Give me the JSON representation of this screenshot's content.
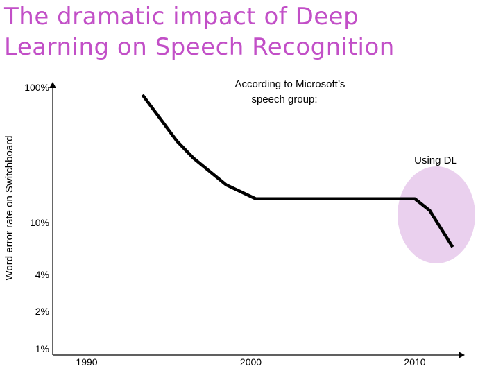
{
  "title_lines": [
    "The dramatic impact of Deep",
    "Learning on Speech Recognition"
  ],
  "colors": {
    "title": "#c24fc7",
    "line": "#000000",
    "highlight": "#ead0ee"
  },
  "chart_data": {
    "type": "line",
    "title": "The dramatic impact of Deep Learning on Speech Recognition",
    "ylabel": "Word error rate on Switchboard",
    "xlabel": "",
    "y_scale": "log",
    "x_ticks": [
      1990,
      2000,
      2010
    ],
    "y_ticks": [
      {
        "value": 100,
        "label": "100%"
      },
      {
        "value": 10,
        "label": "10%"
      },
      {
        "value": 4,
        "label": "4%"
      },
      {
        "value": 2,
        "label": "2%"
      },
      {
        "value": 1,
        "label": "1%"
      }
    ],
    "xlim": [
      1988,
      2013
    ],
    "ylim": [
      1,
      100
    ],
    "series": [
      {
        "x": [
          1993.4,
          1995.5,
          1996.5,
          1998.5,
          2000.3,
          2010.0,
          2010.9,
          2012.3
        ],
        "y": [
          88,
          40,
          30,
          19,
          15,
          15,
          12.3,
          6.5
        ]
      }
    ],
    "annotations": [
      {
        "text_lines": [
          "According to Microsoft’s",
          "speech group:"
        ]
      },
      {
        "text": "Using DL"
      }
    ],
    "grid": false,
    "legend": "none"
  }
}
